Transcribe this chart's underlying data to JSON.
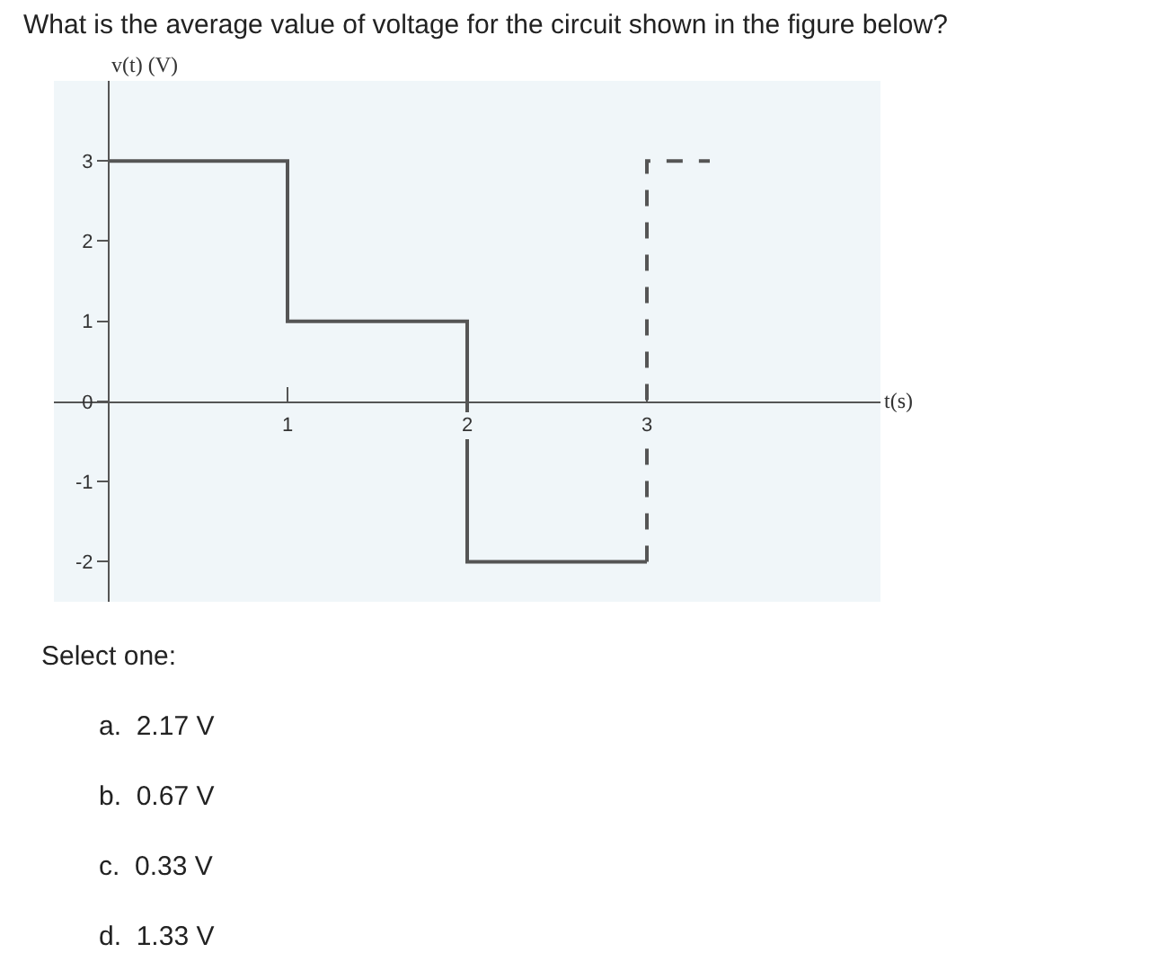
{
  "chart_data": {
    "type": "step",
    "title": "What is the average value of voltage for the circuit shown in the figure below?",
    "xlabel": "t(s)",
    "ylabel": "v(t) (V)",
    "series": [
      {
        "type": "step",
        "color": "#555555",
        "x": [
          0,
          1,
          2,
          3
        ],
        "values": [
          3,
          1,
          -2,
          -2
        ],
        "line_style": "solid"
      },
      {
        "type": "line",
        "color": "#555555",
        "x": [
          3,
          3,
          3.35
        ],
        "values": [
          -2,
          3,
          3
        ],
        "line_style": "dashed"
      }
    ],
    "xlim": [
      -0.3,
      4.3
    ],
    "ylim": [
      -2.5,
      4
    ],
    "xticks": [
      1,
      2,
      3
    ],
    "yticks": [
      -2,
      -1,
      0,
      1,
      2,
      3
    ],
    "annotations": [
      "Select one:",
      "a.  2.17 V",
      "b.  0.67 V",
      "c.  0.33 V",
      "d.  1.33 V"
    ]
  }
}
